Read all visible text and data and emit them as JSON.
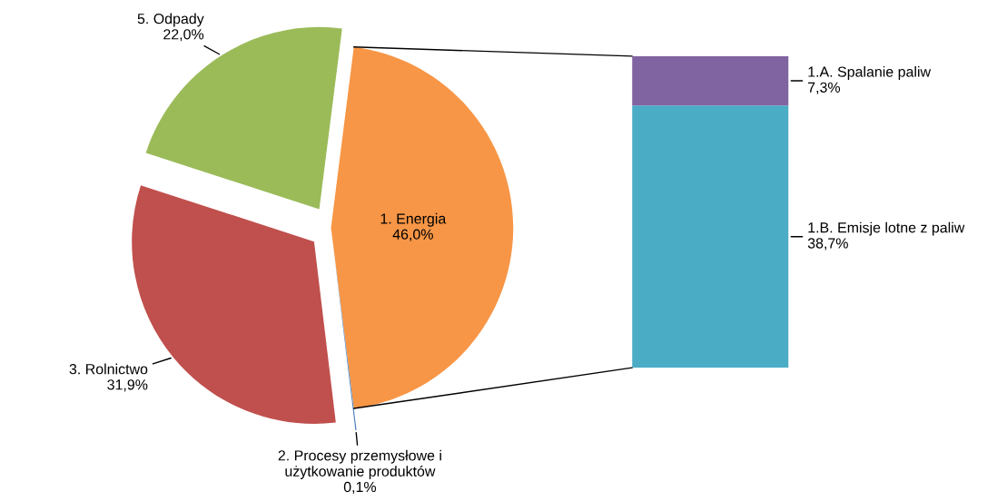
{
  "chart_data": [
    {
      "type": "pie",
      "categories": [
        "1. Energia",
        "2. Procesy przemysłowe i\nużytkowanie produktów",
        "3. Rolnictwo",
        "5. Odpady"
      ],
      "values": [
        46.0,
        0.1,
        31.9,
        22.0
      ],
      "colors": [
        "#f79646",
        "#4f81bd",
        "#c0504d",
        "#9bbb59"
      ],
      "value_labels": [
        "46,0%",
        "0,1%",
        "31,9%",
        "22,0%"
      ]
    },
    {
      "type": "bar",
      "stacked": true,
      "categories": [
        null
      ],
      "series": [
        {
          "name": "1.B. Emisje lotne z paliw",
          "color": "#4bacc6",
          "values": [
            38.7
          ],
          "value_labels": [
            "38,7%"
          ]
        },
        {
          "name": "1.A. Spalanie paliw",
          "color": "#8064a2",
          "values": [
            7.3
          ],
          "value_labels": [
            "7,3%"
          ]
        }
      ]
    }
  ]
}
